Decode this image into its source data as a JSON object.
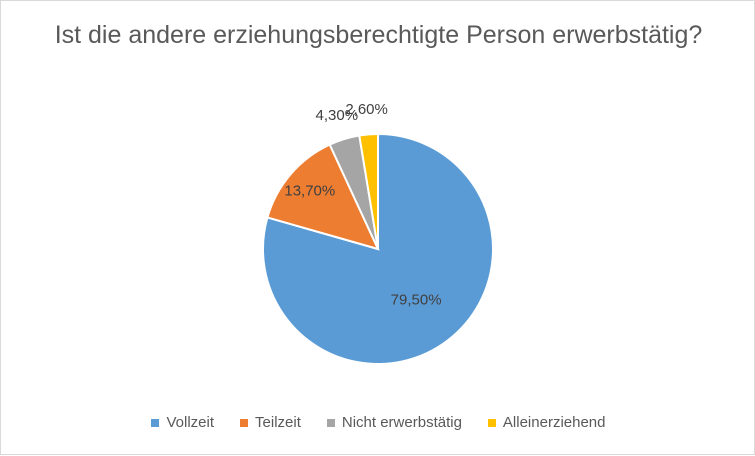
{
  "chart_data": {
    "type": "pie",
    "title": "Ist die andere erziehungsberechtigte Person erwerbstätig?",
    "categories": [
      "Vollzeit",
      "Teilzeit",
      "Nicht erwerbstätig",
      "Alleinerziehend"
    ],
    "values": [
      79.5,
      13.7,
      4.3,
      2.6
    ],
    "labels": [
      "79,50%",
      "13,70%",
      "4,30%",
      "2,60%"
    ],
    "colors": [
      "#5b9bd5",
      "#ed7d31",
      "#a5a5a5",
      "#ffc000"
    ],
    "legend_position": "bottom",
    "start_angle": "top, clockwise"
  }
}
